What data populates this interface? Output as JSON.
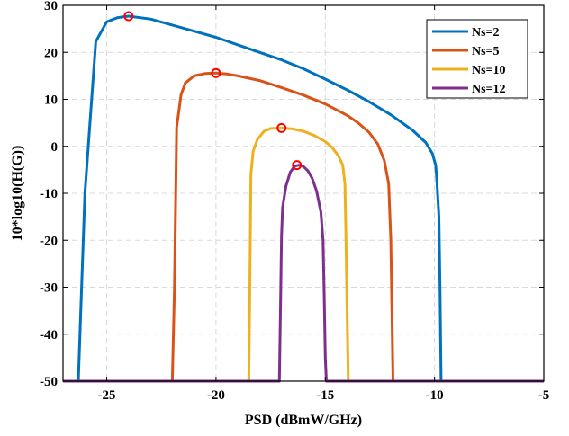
{
  "chart_data": {
    "type": "line",
    "title": "",
    "xlabel": "PSD (dBmW/GHz)",
    "ylabel": "10*log10(H(G))",
    "xlim": [
      -27,
      -5
    ],
    "ylim": [
      -50,
      30
    ],
    "xticks": [
      -25,
      -20,
      -15,
      -10,
      -5
    ],
    "yticks": [
      -50,
      -40,
      -30,
      -20,
      -10,
      0,
      10,
      20,
      30
    ],
    "grid": true,
    "legend_position": "top-right",
    "series": [
      {
        "name": "Ns=2",
        "color": "#0072BD",
        "x": [
          -27,
          -26.3,
          -26.0,
          -25.5,
          -25.0,
          -24.5,
          -24.0,
          -23.0,
          -22.0,
          -21.0,
          -20.0,
          -19.0,
          -18.0,
          -17.0,
          -16.0,
          -15.0,
          -14.0,
          -13.0,
          -12.0,
          -11.0,
          -10.4,
          -10.1,
          -9.95,
          -9.9,
          -9.8,
          -9.75,
          -9.7,
          -5
        ],
        "y": [
          -50,
          -50,
          -10,
          22.3,
          26.5,
          27.4,
          27.7,
          27.1,
          25.8,
          24.5,
          23.2,
          21.6,
          20.0,
          18.4,
          16.5,
          14.3,
          12.0,
          9.5,
          6.7,
          3.4,
          0.8,
          -1.5,
          -4.0,
          -7.0,
          -15,
          -30,
          -50,
          -50
        ],
        "peak": {
          "x": -24.0,
          "y": 27.7
        }
      },
      {
        "name": "Ns=5",
        "color": "#D95319",
        "x": [
          -27,
          -22.0,
          -21.9,
          -21.8,
          -21.6,
          -21.4,
          -21.0,
          -20.5,
          -20.0,
          -19.5,
          -19.0,
          -18.0,
          -17.0,
          -16.0,
          -15.0,
          -14.0,
          -13.5,
          -13.0,
          -12.6,
          -12.3,
          -12.1,
          -12.0,
          -11.95,
          -11.9,
          -5
        ],
        "y": [
          -50,
          -50,
          -30,
          4.0,
          11.0,
          13.5,
          15.0,
          15.5,
          15.6,
          15.4,
          15.0,
          14.0,
          12.5,
          10.9,
          9.0,
          6.6,
          5.0,
          3.0,
          0.5,
          -3.0,
          -8.0,
          -20,
          -35,
          -50,
          -50
        ],
        "peak": {
          "x": -20.0,
          "y": 15.6
        }
      },
      {
        "name": "Ns=10",
        "color": "#EDB120",
        "x": [
          -27,
          -18.5,
          -18.45,
          -18.4,
          -18.3,
          -18.1,
          -17.8,
          -17.5,
          -17.0,
          -16.5,
          -16.0,
          -15.5,
          -15.0,
          -14.7,
          -14.4,
          -14.2,
          -14.1,
          -14.05,
          -14.0,
          -13.95,
          -5
        ],
        "y": [
          -50,
          -50,
          -30,
          -6.0,
          -1.0,
          1.5,
          3.2,
          3.8,
          3.9,
          3.7,
          3.2,
          2.3,
          1.0,
          -0.2,
          -2.0,
          -4.0,
          -8.0,
          -20,
          -35,
          -50,
          -50
        ],
        "peak": {
          "x": -17.0,
          "y": 3.9
        }
      },
      {
        "name": "Ns=12",
        "color": "#7E2F8E",
        "x": [
          -27,
          -17.1,
          -17.05,
          -17.0,
          -16.95,
          -16.8,
          -16.6,
          -16.4,
          -16.2,
          -16.0,
          -15.8,
          -15.6,
          -15.4,
          -15.2,
          -15.1,
          -15.05,
          -15.0,
          -14.95,
          -5
        ],
        "y": [
          -50,
          -50,
          -35,
          -19.0,
          -13.0,
          -8.5,
          -5.5,
          -4.2,
          -4.0,
          -4.3,
          -5.2,
          -6.8,
          -9.5,
          -14.0,
          -20,
          -32,
          -45,
          -50,
          -50
        ],
        "peak": {
          "x": -16.3,
          "y": -4.0
        }
      }
    ]
  }
}
